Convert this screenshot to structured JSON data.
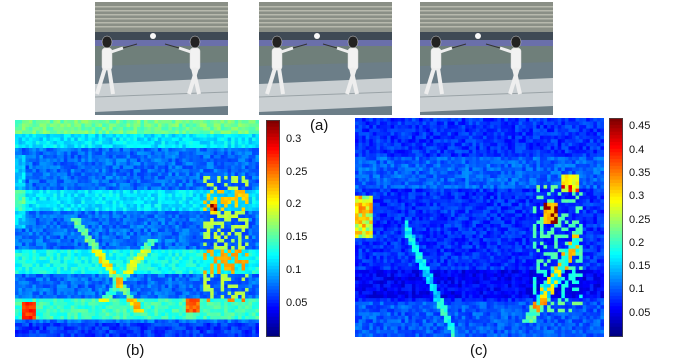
{
  "figure": {
    "captions": {
      "a": "(a)",
      "b": "(b)",
      "c": "(c)"
    },
    "video_frames": [
      {
        "name": "frame-1"
      },
      {
        "name": "frame-2"
      },
      {
        "name": "frame-3"
      }
    ],
    "heatmaps": [
      {
        "id": "b",
        "colormap": "jet",
        "colorbar_range": [
          0,
          0.33
        ],
        "colorbar_ticks": [
          "0.3",
          "0.25",
          "0.2",
          "0.15",
          "0.1",
          "0.05"
        ],
        "tick_values": [
          0.3,
          0.25,
          0.2,
          0.15,
          0.1,
          0.05
        ]
      },
      {
        "id": "c",
        "colormap": "jet",
        "colorbar_range": [
          0,
          0.47
        ],
        "colorbar_ticks": [
          "0.45",
          "0.4",
          "0.35",
          "0.3",
          "0.25",
          "0.2",
          "0.15",
          "0.1",
          "0.05"
        ],
        "tick_values": [
          0.45,
          0.4,
          0.35,
          0.3,
          0.25,
          0.2,
          0.15,
          0.1,
          0.05
        ]
      }
    ]
  }
}
